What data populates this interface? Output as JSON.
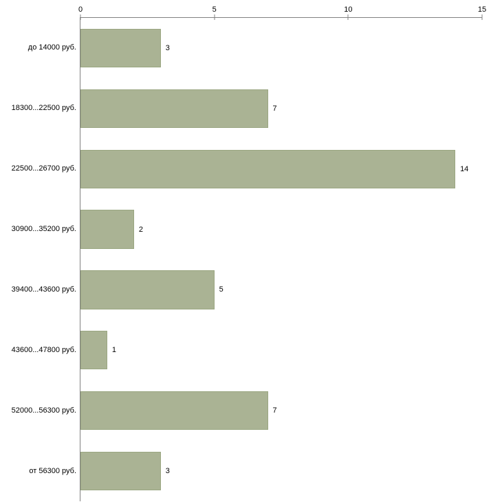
{
  "chart_data": {
    "type": "bar",
    "orientation": "horizontal",
    "title": "",
    "xlabel": "",
    "ylabel": "",
    "categories": [
      "до 14000 руб.",
      "18300...22500 руб.",
      "22500...26700 руб.",
      "30900...35200 руб.",
      "39400...43600 руб.",
      "43600...47800 руб.",
      "52000...56300 руб.",
      "от 56300 руб."
    ],
    "values": [
      3,
      7,
      14,
      2,
      5,
      1,
      7,
      3
    ],
    "xlim": [
      0,
      15
    ],
    "xticks": [
      0,
      5,
      10,
      15
    ],
    "grid": false,
    "legend": "none",
    "bar_color": "#aab394",
    "bar_border_color": "#9aa681",
    "axis_color": "#808080"
  }
}
